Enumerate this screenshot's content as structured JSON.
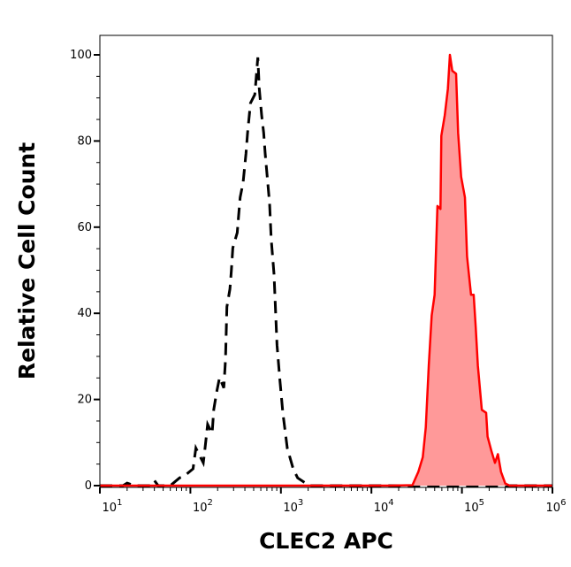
{
  "chart_data": {
    "type": "area",
    "title": "",
    "xlabel": "CLEC2 APC",
    "ylabel": "Relative Cell Count",
    "xscale": "log",
    "xlim": [
      10,
      1000000
    ],
    "ylim": [
      0,
      100
    ],
    "grid": false,
    "y_ticks": [
      0,
      20,
      40,
      60,
      80,
      100
    ],
    "x_ticks": [
      {
        "base": "10",
        "exp": "1",
        "value": 10
      },
      {
        "base": "10",
        "exp": "2",
        "value": 100
      },
      {
        "base": "10",
        "exp": "3",
        "value": 1000
      },
      {
        "base": "10",
        "exp": "4",
        "value": 10000
      },
      {
        "base": "10",
        "exp": "5",
        "value": 100000
      },
      {
        "base": "10",
        "exp": "6",
        "value": 1000000
      }
    ],
    "series": [
      {
        "style": "dashed-line",
        "color": "#000000",
        "points": [
          [
            10,
            0
          ],
          [
            18,
            0
          ],
          [
            20,
            0.6
          ],
          [
            24,
            0
          ],
          [
            36,
            0
          ],
          [
            40,
            1.2
          ],
          [
            44,
            0
          ],
          [
            60,
            0
          ],
          [
            76,
            1.8
          ],
          [
            85,
            2.2
          ],
          [
            107,
            3.9
          ],
          [
            115,
            8.7
          ],
          [
            139,
            5.3
          ],
          [
            144,
            8.0
          ],
          [
            155,
            14.2
          ],
          [
            174,
            12.1
          ],
          [
            181,
            17.6
          ],
          [
            195,
            21.7
          ],
          [
            210,
            25.1
          ],
          [
            234,
            22.7
          ],
          [
            244,
            29.2
          ],
          [
            253,
            41.5
          ],
          [
            273,
            45.6
          ],
          [
            283,
            49.8
          ],
          [
            294,
            55.2
          ],
          [
            329,
            58.7
          ],
          [
            341,
            62.8
          ],
          [
            355,
            66.9
          ],
          [
            382,
            70.3
          ],
          [
            411,
            77.1
          ],
          [
            428,
            81.9
          ],
          [
            461,
            88.8
          ],
          [
            515,
            90.8
          ],
          [
            556,
            99.4
          ],
          [
            577,
            92.2
          ],
          [
            613,
            86.0
          ],
          [
            645,
            81.9
          ],
          [
            670,
            77.1
          ],
          [
            750,
            65.5
          ],
          [
            780,
            57.3
          ],
          [
            840,
            49.1
          ],
          [
            905,
            32.6
          ],
          [
            976,
            24.4
          ],
          [
            1050,
            16.9
          ],
          [
            1175,
            8.7
          ],
          [
            1368,
            3.9
          ],
          [
            1531,
            1.8
          ],
          [
            2060,
            0
          ],
          [
            1000000,
            0
          ]
        ]
      },
      {
        "style": "filled",
        "color": "#ff0000",
        "fill": "#ff9999",
        "points": [
          [
            10,
            0
          ],
          [
            15600,
            0
          ],
          [
            28400,
            0.1
          ],
          [
            33000,
            3.2
          ],
          [
            36900,
            6.6
          ],
          [
            39900,
            13.5
          ],
          [
            43000,
            27.9
          ],
          [
            46300,
            39.5
          ],
          [
            49900,
            44.3
          ],
          [
            51700,
            54.6
          ],
          [
            53700,
            64.9
          ],
          [
            57900,
            64.2
          ],
          [
            59200,
            81.2
          ],
          [
            64700,
            86.0
          ],
          [
            69900,
            92.1
          ],
          [
            73600,
            100
          ],
          [
            78300,
            96.3
          ],
          [
            86300,
            95.6
          ],
          [
            90800,
            81.9
          ],
          [
            98000,
            71.7
          ],
          [
            108000,
            66.9
          ],
          [
            114000,
            53.2
          ],
          [
            126000,
            44.3
          ],
          [
            135000,
            44.3
          ],
          [
            142000,
            36.8
          ],
          [
            150000,
            27.9
          ],
          [
            166000,
            17.6
          ],
          [
            185000,
            16.9
          ],
          [
            192000,
            11.4
          ],
          [
            212000,
            8.0
          ],
          [
            232000,
            5.3
          ],
          [
            250000,
            7.3
          ],
          [
            270000,
            3.2
          ],
          [
            301000,
            0.5
          ],
          [
            337000,
            0
          ],
          [
            1000000,
            0
          ]
        ]
      }
    ]
  }
}
